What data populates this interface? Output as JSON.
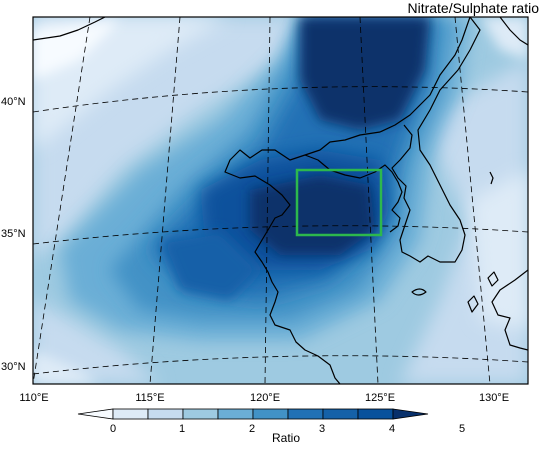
{
  "title": "Nitrate/Sulphate ratio",
  "latitude_labels": [
    "40°N",
    "35°N",
    "30°N"
  ],
  "longitude_labels": [
    "110°E",
    "115°E",
    "120°E",
    "125°E",
    "130°E"
  ],
  "colorbar": {
    "label": "Ratio",
    "ticks": [
      "0",
      "1",
      "2",
      "3",
      "4",
      "5"
    ],
    "colors": [
      "#f7fbff",
      "#deebf7",
      "#c6dbef",
      "#9ecae1",
      "#6baed6",
      "#4292c6",
      "#2171b5",
      "#1561a8",
      "#08519c",
      "#08306b"
    ]
  },
  "highlight_box_color": "#2db84d"
}
